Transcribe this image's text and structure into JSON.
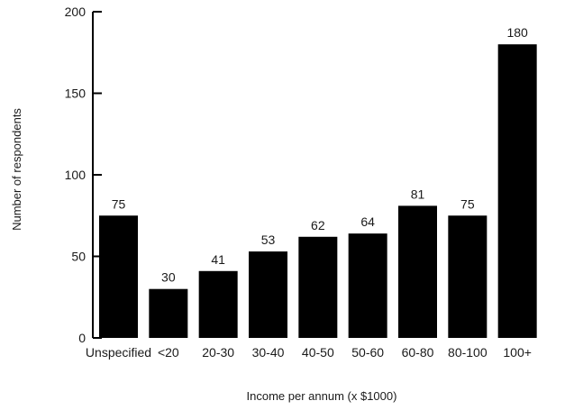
{
  "chart_data": {
    "type": "bar",
    "categories": [
      "Unspecified",
      "<20",
      "20-30",
      "30-40",
      "40-50",
      "50-60",
      "60-80",
      "80-100",
      "100+"
    ],
    "values": [
      75,
      30,
      41,
      53,
      62,
      64,
      81,
      75,
      180
    ],
    "data_labels": [
      "75",
      "30",
      "41",
      "53",
      "62",
      "64",
      "81",
      "75",
      "180"
    ],
    "title": "",
    "xlabel": "Income per annum (x $1000)",
    "ylabel": "Number of respondents",
    "ylim": [
      0,
      200
    ],
    "yticks": [
      0,
      50,
      100,
      150,
      200
    ],
    "ytick_labels": [
      "0",
      "50",
      "100",
      "150",
      "200"
    ],
    "grid": false,
    "bar_color": "#000000"
  }
}
